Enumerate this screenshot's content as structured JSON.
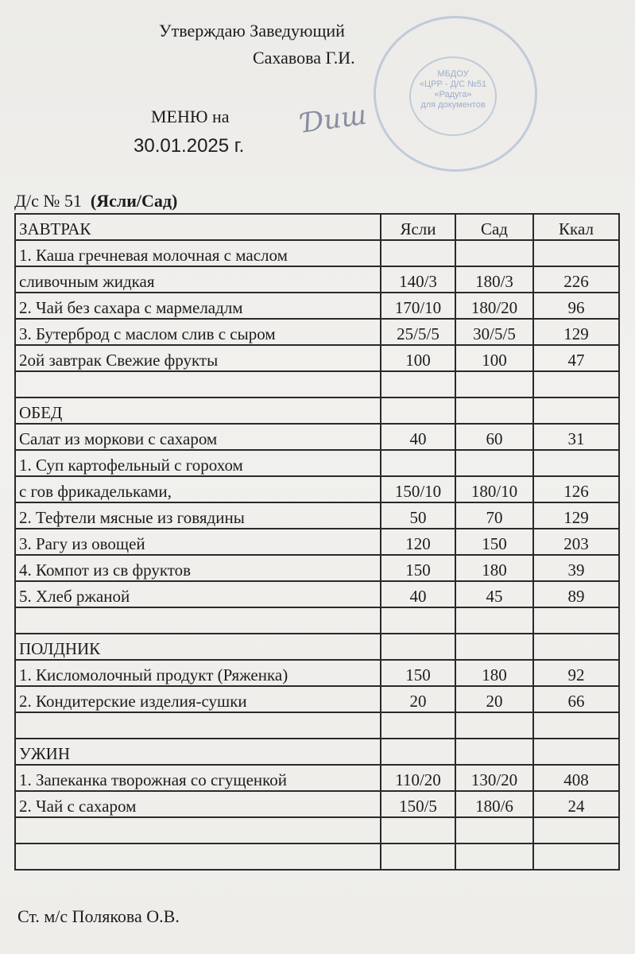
{
  "header": {
    "approve": "Утверждаю Заведующий",
    "head_name": "Сахавова Г.И.",
    "menu_on": "МЕНЮ на",
    "menu_date": "30.01.2025 г.",
    "org_prefix": "Д/с  № 51",
    "org_group": "(Ясли/Сад)"
  },
  "stamp": {
    "lines": [
      "МБДОУ",
      "«ЦРР - Д/С №51",
      "«Радуга»",
      "для документов"
    ]
  },
  "table": {
    "columns": [
      "ЗАВТРАК",
      "Ясли",
      "Сад",
      "Ккал"
    ],
    "rows": [
      [
        "1. Каша гречневая молочная с маслом",
        "",
        "",
        ""
      ],
      [
        "сливочным жидкая",
        "140/3",
        "180/3",
        "226"
      ],
      [
        "2. Чай без сахара с мармеладлм",
        "170/10",
        "180/20",
        "96"
      ],
      [
        "3. Бутерброд с маслом слив с сыром",
        "25/5/5",
        "30/5/5",
        "129"
      ],
      [
        "2ой завтрак  Свежие фрукты",
        "100",
        "100",
        "47"
      ],
      [
        "",
        "",
        "",
        ""
      ],
      [
        "ОБЕД",
        "",
        "",
        ""
      ],
      [
        "Салат из моркови с сахаром",
        "40",
        "60",
        "31"
      ],
      [
        "1. Суп картофельный с горохом",
        "",
        "",
        ""
      ],
      [
        " с гов фрикадельками,",
        "150/10",
        "180/10",
        "126"
      ],
      [
        "2. Тефтели мясные из говядины",
        "50",
        "70",
        "129"
      ],
      [
        "3. Рагу из овощей",
        "120",
        "150",
        "203"
      ],
      [
        "4. Компот из св фруктов",
        "150",
        "180",
        "39"
      ],
      [
        "5. Хлеб ржаной",
        "40",
        "45",
        "89"
      ],
      [
        "",
        "",
        "",
        ""
      ],
      [
        "ПОЛДНИК",
        "",
        "",
        ""
      ],
      [
        "1. Кисломолочный продукт (Ряженка)",
        "150",
        "180",
        "92"
      ],
      [
        "2. Кондитерские изделия-сушки",
        "20",
        "20",
        "66"
      ],
      [
        "",
        "",
        "",
        ""
      ],
      [
        "УЖИН",
        "",
        "",
        ""
      ],
      [
        "1. Запеканка творожная со сгущенкой",
        "110/20",
        "130/20",
        "408"
      ],
      [
        "2. Чай с сахаром",
        "150/5",
        "180/6",
        "24"
      ],
      [
        "",
        "",
        "",
        ""
      ],
      [
        "",
        "",
        "",
        ""
      ]
    ]
  },
  "footer": {
    "signed": "Ст. м/с Полякова О.В."
  }
}
